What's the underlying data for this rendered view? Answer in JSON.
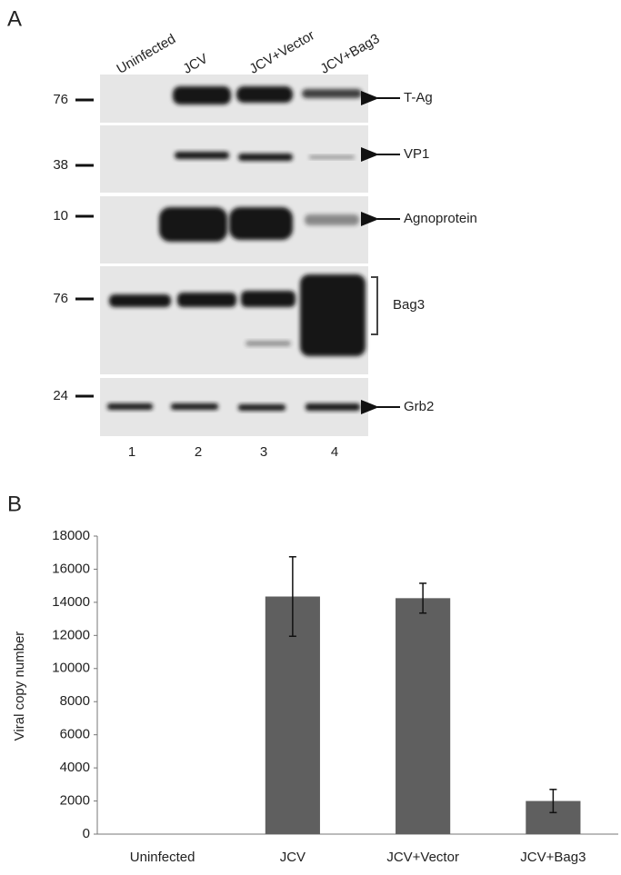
{
  "panel_a": {
    "label": "A",
    "lanes": [
      "Uninfected",
      "JCV",
      "JCV+Vector",
      "JCV+Bag3"
    ],
    "lane_numbers": [
      "1",
      "2",
      "3",
      "4"
    ],
    "blots": [
      {
        "marker": "76",
        "label": "T-Ag"
      },
      {
        "marker": "38",
        "label": "VP1"
      },
      {
        "marker": "10",
        "label": "Agnoprotein"
      },
      {
        "marker": "76",
        "label": "Bag3"
      },
      {
        "marker": "24",
        "label": "Grb2"
      }
    ]
  },
  "chart_data": {
    "type": "bar",
    "panel_label": "B",
    "y_label": "Viral copy number",
    "categories": [
      "Uninfected",
      "JCV",
      "JCV+Vector",
      "JCV+Bag3"
    ],
    "values": [
      0,
      14350,
      14250,
      2000
    ],
    "errors": [
      null,
      2400,
      900,
      700
    ],
    "color": "#5f5f5f",
    "ylim": [
      0,
      18000
    ],
    "yticks": [
      0,
      2000,
      4000,
      6000,
      8000,
      10000,
      12000,
      14000,
      16000,
      18000
    ]
  }
}
